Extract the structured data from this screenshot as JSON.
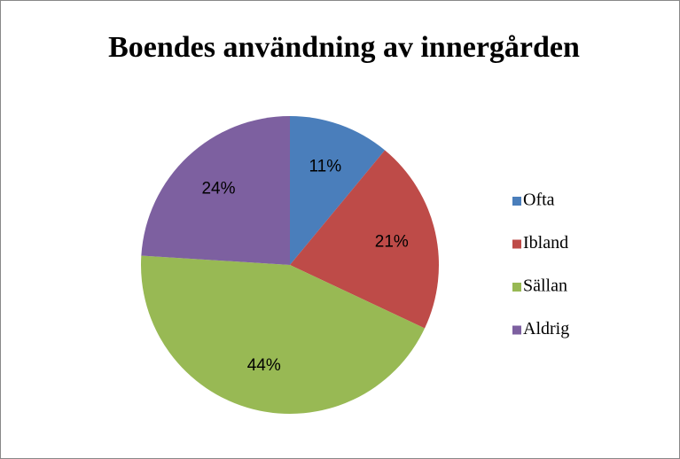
{
  "chart_data": {
    "type": "pie",
    "title": "Boendes användning av innergården",
    "categories": [
      "Ofta",
      "Ibland",
      "Sällan",
      "Aldrig"
    ],
    "values": [
      11,
      21,
      44,
      24
    ],
    "value_labels": [
      "11%",
      "21%",
      "44%",
      "24%"
    ],
    "colors": [
      "#4a7ebb",
      "#be4b48",
      "#98b954",
      "#7d60a0"
    ],
    "legend": "right"
  }
}
